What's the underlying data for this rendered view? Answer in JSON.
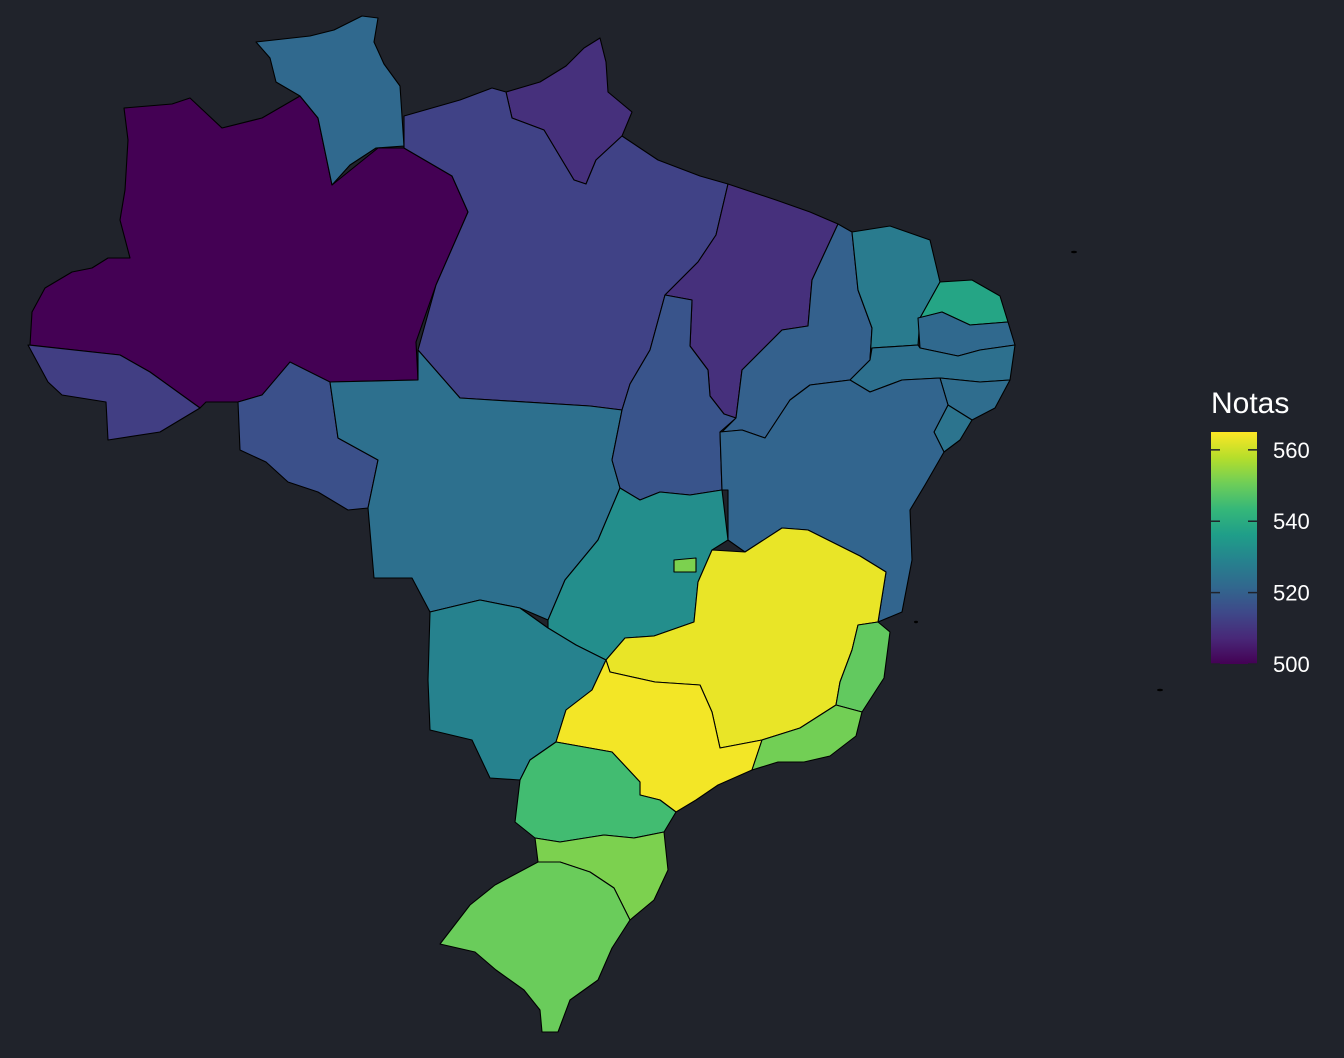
{
  "chart_data": {
    "type": "choropleth",
    "legend": {
      "title": "Notas",
      "ticks": [
        500,
        520,
        540,
        560
      ],
      "range": [
        500,
        565
      ],
      "placement": "right",
      "palette": [
        "#440154",
        "#482878",
        "#3e4989",
        "#31688e",
        "#26828e",
        "#1f9e89",
        "#35b779",
        "#6ece58",
        "#b5de2b",
        "#fde725"
      ]
    },
    "regions": [
      {
        "id": "AM",
        "value": 500
      },
      {
        "id": "RR",
        "value": 522
      },
      {
        "id": "AP",
        "value": 509
      },
      {
        "id": "PA",
        "value": 513
      },
      {
        "id": "MA",
        "value": 509
      },
      {
        "id": "AC",
        "value": 512
      },
      {
        "id": "RO",
        "value": 516
      },
      {
        "id": "MT",
        "value": 524
      },
      {
        "id": "TO",
        "value": 517
      },
      {
        "id": "PI",
        "value": 520
      },
      {
        "id": "CE",
        "value": 527
      },
      {
        "id": "RN",
        "value": 538
      },
      {
        "id": "PB",
        "value": 522
      },
      {
        "id": "PE",
        "value": 524
      },
      {
        "id": "AL",
        "value": 523
      },
      {
        "id": "SE",
        "value": 525
      },
      {
        "id": "BA",
        "value": 521
      },
      {
        "id": "GO",
        "value": 532
      },
      {
        "id": "DF",
        "value": 552
      },
      {
        "id": "MS",
        "value": 529
      },
      {
        "id": "MG",
        "value": 563
      },
      {
        "id": "ES",
        "value": 549
      },
      {
        "id": "SP",
        "value": 564
      },
      {
        "id": "RJ",
        "value": 551
      },
      {
        "id": "PR",
        "value": 545
      },
      {
        "id": "SC",
        "value": 552
      },
      {
        "id": "RS",
        "value": 550
      }
    ]
  }
}
